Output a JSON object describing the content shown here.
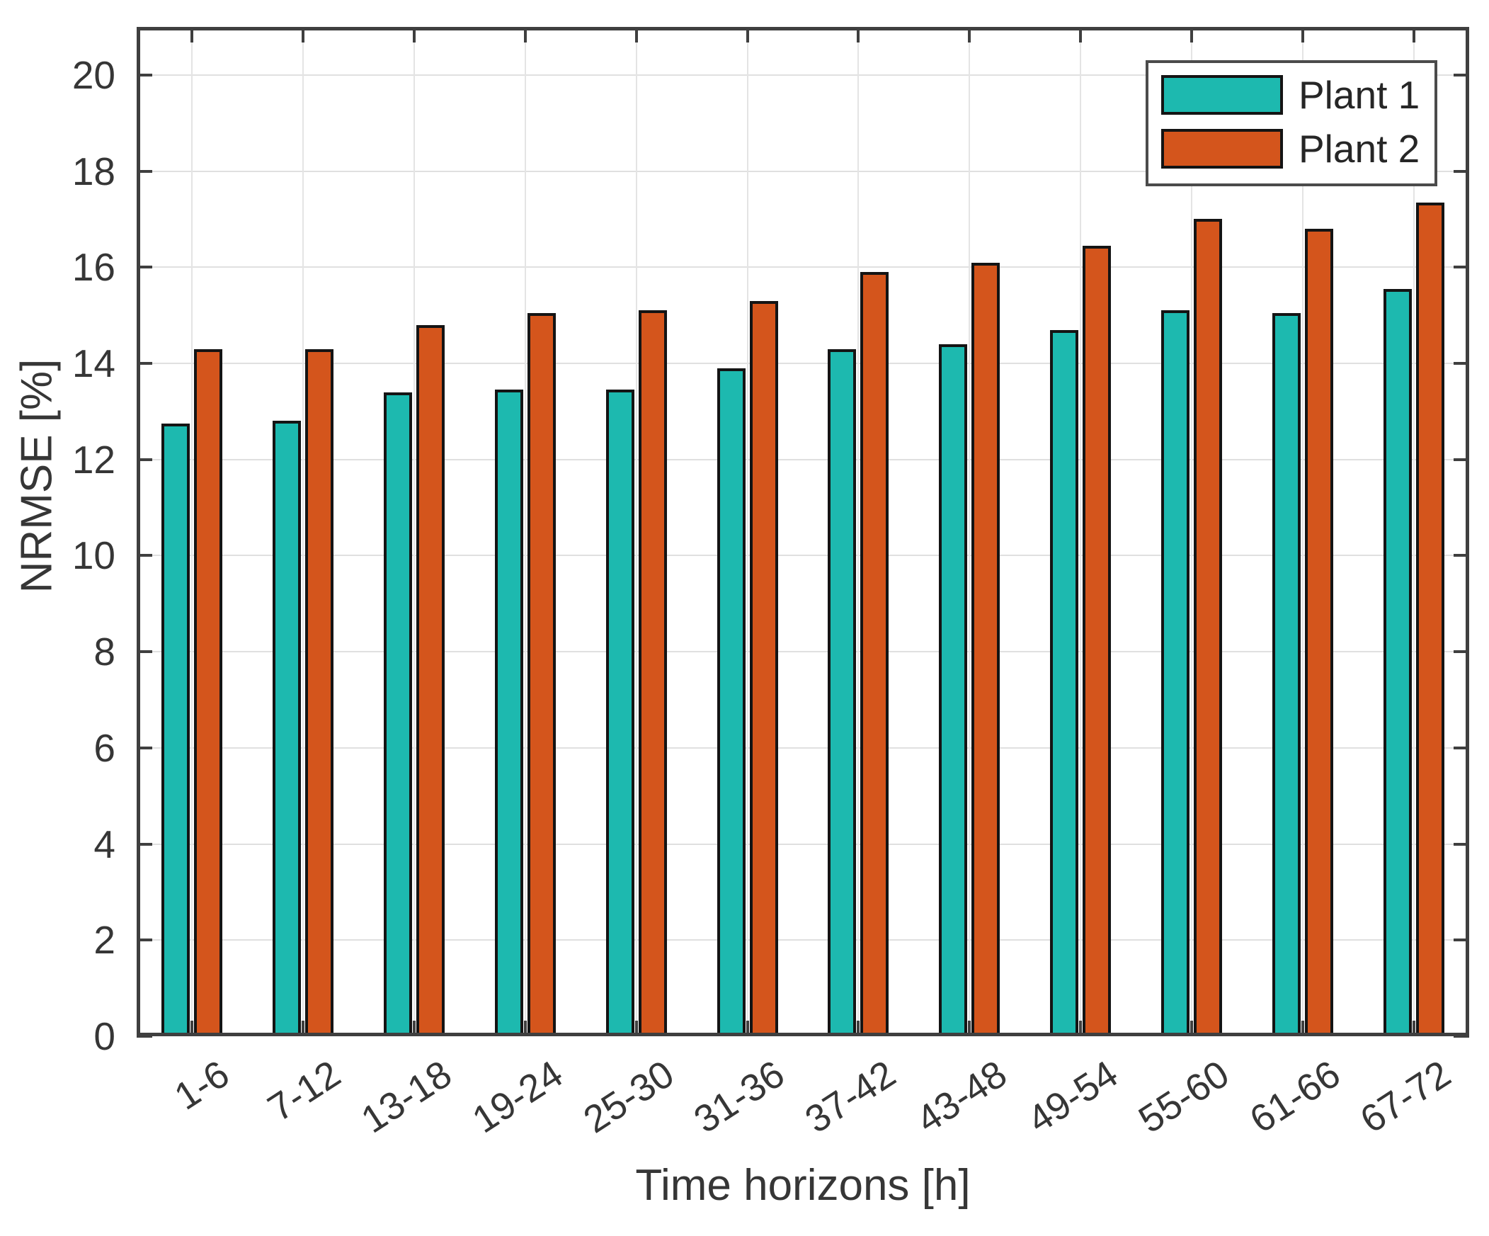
{
  "chart_data": {
    "type": "bar",
    "title": "",
    "xlabel": "Time horizons [h]",
    "ylabel": "NRMSE [%]",
    "categories": [
      "1-6",
      "7-12",
      "13-18",
      "19-24",
      "25-30",
      "31-36",
      "37-42",
      "43-48",
      "49-54",
      "55-60",
      "61-66",
      "67-72"
    ],
    "series": [
      {
        "name": "Plant 1",
        "color": "#1db9af",
        "values": [
          12.75,
          12.8,
          13.4,
          13.45,
          13.45,
          13.9,
          14.3,
          14.4,
          14.7,
          15.1,
          15.05,
          15.55
        ]
      },
      {
        "name": "Plant 2",
        "color": "#d4551c",
        "values": [
          14.3,
          14.3,
          14.8,
          15.05,
          15.1,
          15.3,
          15.9,
          16.1,
          16.45,
          17.0,
          16.8,
          17.35
        ]
      }
    ],
    "ylim": [
      0,
      21
    ],
    "yticks": [
      0,
      2,
      4,
      6,
      8,
      10,
      12,
      14,
      16,
      18,
      20
    ],
    "grid": true,
    "legend_position": "top-right",
    "bar_edge_color": "#141414",
    "xtick_rotation_deg": -33
  },
  "colors": {
    "axis": "#3f3f3f",
    "grid": "#e0e0e0",
    "text": "#363636",
    "background": "#ffffff"
  }
}
